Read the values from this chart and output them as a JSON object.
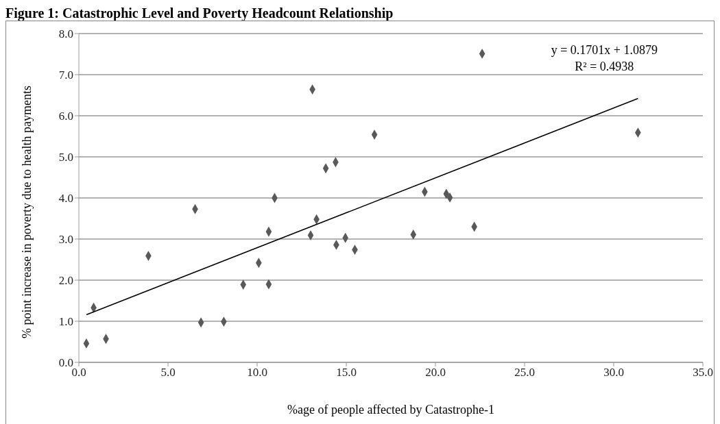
{
  "chart_data": {
    "type": "scatter",
    "title": "Figure 1: Catastrophic Level and Poverty Headcount Relationship",
    "xlabel": "%age of people affected by Catastrophe-1",
    "ylabel": "% point increase in poverty due to health payments",
    "series": [
      {
        "color": "#595959",
        "marker": "diamond",
        "x": [
          0.42,
          0.83,
          1.52,
          3.9,
          6.52,
          6.85,
          8.13,
          9.22,
          10.09,
          10.65,
          10.65,
          10.98,
          13.1,
          16.58,
          13.85,
          14.4,
          13.33,
          13.0,
          14.95,
          14.44,
          15.48,
          19.4,
          20.61,
          20.81,
          18.76,
          22.18,
          22.62,
          31.36
        ],
        "values": [
          0.46,
          1.33,
          0.57,
          2.59,
          3.73,
          0.97,
          0.99,
          1.89,
          2.42,
          1.9,
          3.18,
          4.0,
          6.64,
          5.54,
          4.72,
          4.87,
          3.48,
          3.09,
          3.03,
          2.86,
          2.74,
          4.15,
          4.1,
          4.01,
          3.11,
          3.3,
          7.51,
          5.59
        ]
      },
      {
        "type": "line",
        "color": "#000000",
        "x": [
          0.42,
          31.36
        ],
        "values": [
          1.16,
          6.42
        ]
      }
    ],
    "xlim": [
      0,
      35
    ],
    "ylim": [
      0,
      8
    ],
    "xticks": [
      {
        "value": 0,
        "label": "0.0"
      },
      {
        "value": 5,
        "label": "5.0"
      },
      {
        "value": 10,
        "label": "10.0"
      },
      {
        "value": 15,
        "label": "15.0"
      },
      {
        "value": 20,
        "label": "20.0"
      },
      {
        "value": 25,
        "label": "25.0"
      },
      {
        "value": 30,
        "label": "30.0"
      },
      {
        "value": 35,
        "label": "35.0"
      }
    ],
    "yticks": [
      {
        "value": 0,
        "label": "0.0"
      },
      {
        "value": 1,
        "label": "1.0"
      },
      {
        "value": 2,
        "label": "2.0"
      },
      {
        "value": 3,
        "label": "3.0"
      },
      {
        "value": 4,
        "label": "4.0"
      },
      {
        "value": 5,
        "label": "5.0"
      },
      {
        "value": 6,
        "label": "6.0"
      },
      {
        "value": 7,
        "label": "7.0"
      },
      {
        "value": 8,
        "label": "8.0"
      }
    ],
    "grid": "y",
    "annotations": [
      "y = 0.1701x + 1.0879",
      "R² = 0.4938"
    ]
  }
}
